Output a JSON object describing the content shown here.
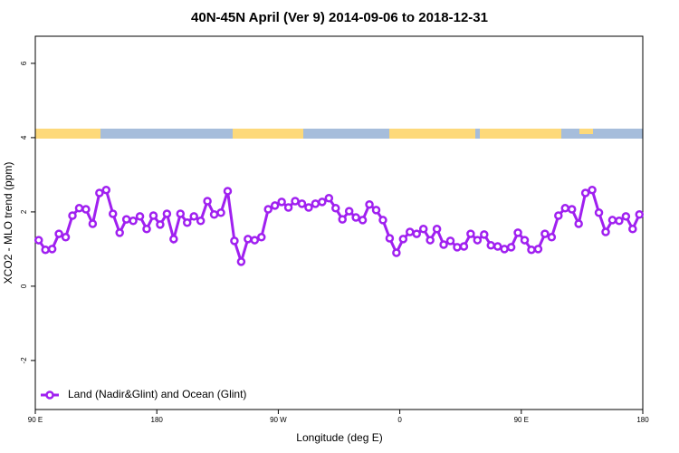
{
  "chart_data": {
    "type": "line",
    "title": "40N-45N April (Ver 9)   2014-09-06 to 2018-12-31",
    "xlabel": "Longitude (deg E)",
    "ylabel": "XCO2 - MLO trend (ppm)",
    "x": [
      92.5,
      97.5,
      102.5,
      107.5,
      112.5,
      117.5,
      122.5,
      127.5,
      132.5,
      137.5,
      142.5,
      147.5,
      152.5,
      157.5,
      162.5,
      167.5,
      172.5,
      177.5,
      182.5,
      187.5,
      192.5,
      197.5,
      202.5,
      207.5,
      212.5,
      217.5,
      222.5,
      227.5,
      232.5,
      237.5,
      242.5,
      247.5,
      252.5,
      257.5,
      262.5,
      267.5,
      272.5,
      277.5,
      282.5,
      287.5,
      292.5,
      297.5,
      302.5,
      307.5,
      312.5,
      317.5,
      322.5,
      327.5,
      332.5,
      337.5,
      342.5,
      347.5,
      352.5,
      357.5,
      362.5,
      367.5,
      372.5,
      377.5,
      382.5,
      387.5,
      392.5,
      397.5,
      402.5,
      407.5,
      412.5,
      417.5,
      422.5,
      427.5,
      432.5,
      437.5,
      442.5,
      447.5,
      452.5,
      457.5,
      462.5,
      467.5,
      472.5,
      477.5,
      482.5,
      487.5,
      492.5,
      497.5,
      502.5,
      507.5,
      512.5,
      517.5,
      522.5,
      527.5,
      532.5,
      537.5
    ],
    "series": [
      {
        "name": "Land (Nadir&Glint) and Ocean (Glint)",
        "color": "#a020f0",
        "values": [
          1.24,
          0.98,
          1.0,
          1.41,
          1.32,
          1.9,
          2.1,
          2.07,
          1.68,
          2.51,
          2.59,
          1.95,
          1.44,
          1.8,
          1.76,
          1.88,
          1.54,
          1.9,
          1.66,
          1.95,
          1.27,
          1.95,
          1.71,
          1.88,
          1.76,
          2.29,
          1.93,
          1.98,
          2.56,
          1.22,
          0.66,
          1.27,
          1.24,
          1.32,
          2.07,
          2.17,
          2.27,
          2.12,
          2.29,
          2.22,
          2.12,
          2.22,
          2.27,
          2.37,
          2.1,
          1.8,
          2.02,
          1.85,
          1.78,
          2.2,
          2.05,
          1.78,
          1.29,
          0.9,
          1.27,
          1.46,
          1.41,
          1.54,
          1.24,
          1.54,
          1.12,
          1.22,
          1.05,
          1.07,
          1.41,
          1.24,
          1.39,
          1.1,
          1.07,
          1.0,
          1.05,
          1.44,
          1.24,
          0.98,
          1.0,
          1.41,
          1.32,
          1.9,
          2.1,
          2.07,
          1.68,
          2.51,
          2.59,
          1.98,
          1.46,
          1.78,
          1.76,
          1.88,
          1.54,
          1.93
        ]
      }
    ],
    "xlim": [
      90,
      540
    ],
    "xticks": [
      {
        "value": 90,
        "label": "90 E"
      },
      180,
      {
        "value": 270,
        "label": "90 W"
      },
      {
        "value": 360,
        "label": "0"
      },
      {
        "value": 450,
        "label": "90 E"
      },
      {
        "value": 540,
        "label": "180"
      }
    ],
    "ylim": [
      -3.32,
      6.73
    ],
    "yticks": [
      -2,
      0,
      2,
      4,
      6
    ],
    "legend": "bottom-left"
  }
}
